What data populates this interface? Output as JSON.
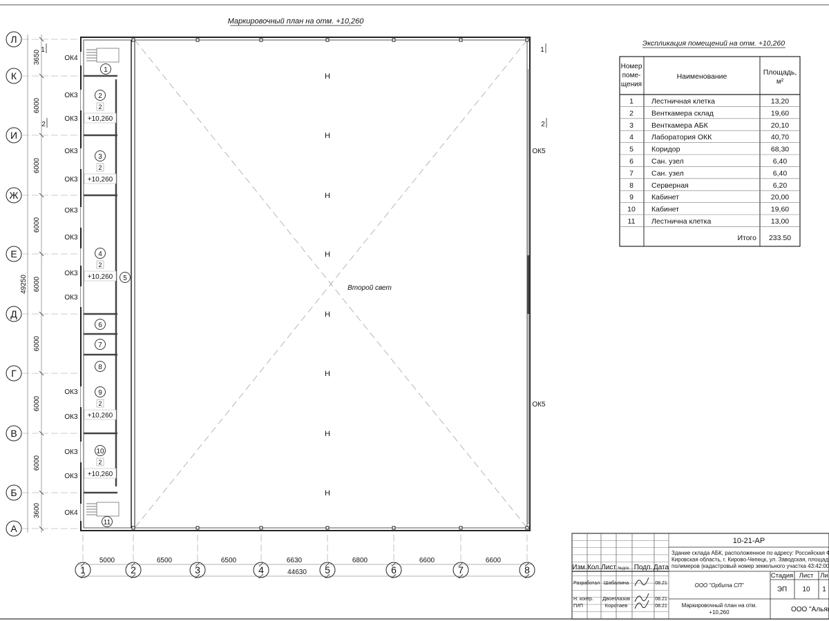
{
  "plan_title": "Маркировочный план на отм. +10,260",
  "second_light": "Второй свет",
  "row_axes": [
    "Л",
    "К",
    "И",
    "Ж",
    "Е",
    "Д",
    "Г",
    "В",
    "Б",
    "А"
  ],
  "column_axes": [
    "1",
    "2",
    "3",
    "4",
    "5",
    "6",
    "7",
    "8"
  ],
  "column_dimensions": [
    "5000",
    "6500",
    "6500",
    "6630",
    "6800",
    "6600",
    "6600"
  ],
  "column_total": "44630",
  "row_dimensions": [
    "3650",
    "6000",
    "6000",
    "6000",
    "6000",
    "6000",
    "6000",
    "6000",
    "3600"
  ],
  "row_total": "49250",
  "section_marks": [
    "1",
    "1",
    "2",
    "2"
  ],
  "rooms": [
    "1",
    "2",
    "3",
    "4",
    "5",
    "6",
    "7",
    "8",
    "9",
    "10",
    "11"
  ],
  "room_tag_floor": "2",
  "room_tag_level": "+10,260",
  "windows": {
    "ok3": "ОК3",
    "ok4": "ОК4",
    "ok5": "ОК5"
  },
  "explication": {
    "title": "Экспликация помещений на отм. +10,260",
    "headers": {
      "number": "Номер поме-щения",
      "name": "Наименование",
      "area": "Площадь, м²"
    },
    "rows": [
      {
        "n": "1",
        "name": "Лестничная клетка",
        "area": "13,20"
      },
      {
        "n": "2",
        "name": "Венткамера склад",
        "area": "19,60"
      },
      {
        "n": "3",
        "name": "Венткамера АБК",
        "area": "20,10"
      },
      {
        "n": "4",
        "name": "Лаборатория ОКК",
        "area": "40,70"
      },
      {
        "n": "5",
        "name": "Коридор",
        "area": "68,30"
      },
      {
        "n": "6",
        "name": "Сан. узел",
        "area": "6,40"
      },
      {
        "n": "7",
        "name": "Сан. узел",
        "area": "6,40"
      },
      {
        "n": "8",
        "name": "Серверная",
        "area": "6,20"
      },
      {
        "n": "9",
        "name": "Кабинет",
        "area": "20,00"
      },
      {
        "n": "10",
        "name": "Кабинет",
        "area": "19,60"
      },
      {
        "n": "11",
        "name": "Лестнична клетка",
        "area": "13,00"
      }
    ],
    "total_label": "Итого",
    "total_value": "233.50"
  },
  "title_block": {
    "code": "10-21-АР",
    "address": [
      "Здание склада АБК, расположенное по адресу: Российская Феде",
      "Кировская область, г. Кирово-Чепецк, ул. Заводская, площадка з",
      "полимеров (кадастровый номер земельного участка 43:42:0000"
    ],
    "col_headers": [
      "Изм.",
      "Кол.",
      "Лист",
      "№док.",
      "Подп.",
      "Дата"
    ],
    "people": [
      {
        "role": "Разработал",
        "name": "Шабалина",
        "date": "08.21"
      },
      {
        "role": "Н. контр.",
        "name": "Двоеглазов",
        "date": "08.21"
      },
      {
        "role": "ГИП",
        "name": "Коротаев",
        "date": "08.21"
      }
    ],
    "org": "ООО \"Орбита СП\"",
    "stage_label": "Стадия",
    "sheet_label": "Лист",
    "sheets_label": "Ли",
    "stage": "ЭП",
    "sheet": "10",
    "sheets": "1",
    "drawing_name": [
      "Маркировочный план на отм.",
      "+10,260"
    ],
    "company": "ООО \"Альянс"
  }
}
